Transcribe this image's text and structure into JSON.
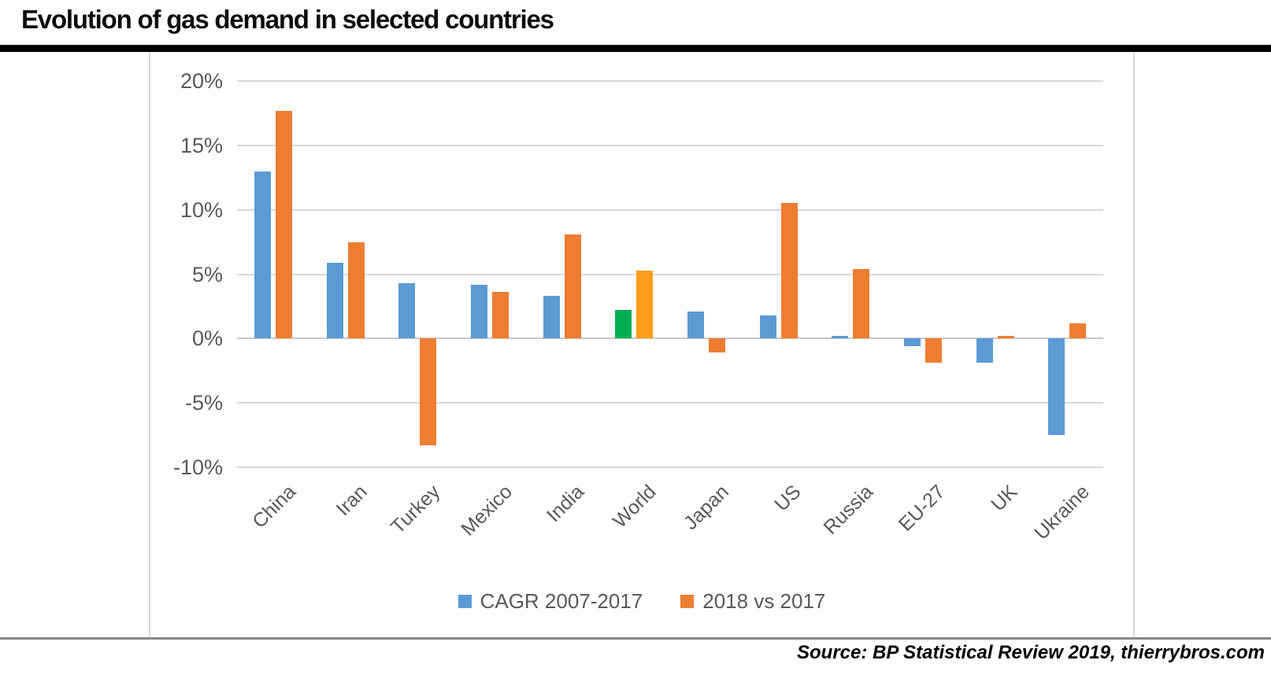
{
  "page": {
    "title": "Evolution of gas demand in selected countries",
    "source_note": "Source: BP Statistical Review 2019, thierrybros.com"
  },
  "chart_data": {
    "type": "bar",
    "title": "Evolution of gas demand in selected countries",
    "categories": [
      "China",
      "Iran",
      "Turkey",
      "Mexico",
      "India",
      "World",
      "Japan",
      "US",
      "Russia",
      "EU-27",
      "UK",
      "Ukraine"
    ],
    "series": [
      {
        "name": "CAGR 2007-2017",
        "color": "#5B9BD5",
        "values": [
          13.0,
          5.9,
          4.3,
          4.2,
          3.3,
          2.2,
          2.1,
          1.8,
          0.2,
          -0.6,
          -1.9,
          -7.5
        ]
      },
      {
        "name": "2018 vs 2017",
        "color": "#ED7D31",
        "values": [
          17.7,
          7.5,
          -8.3,
          3.6,
          8.1,
          5.3,
          -1.1,
          10.5,
          5.4,
          -1.9,
          0.2,
          1.2
        ]
      }
    ],
    "highlight": {
      "category": "World",
      "series_colors": [
        "#00AF55",
        "#FF9C1B"
      ]
    },
    "y_axis": {
      "unit": "%",
      "min": -10,
      "max": 20,
      "tick_values": [
        20,
        15,
        10,
        5,
        0,
        -5,
        -10
      ],
      "tick_labels": [
        "20%",
        "15%",
        "10%",
        "5%",
        "0%",
        "-5%",
        "-10%"
      ]
    },
    "grid": true,
    "legend_position": "bottom"
  },
  "colors": {
    "axis_text": "#595959",
    "gridline": "#D9D9D9",
    "frame_border": "#D9D9D9",
    "separator": "#898989",
    "title_underline": "#000000"
  }
}
